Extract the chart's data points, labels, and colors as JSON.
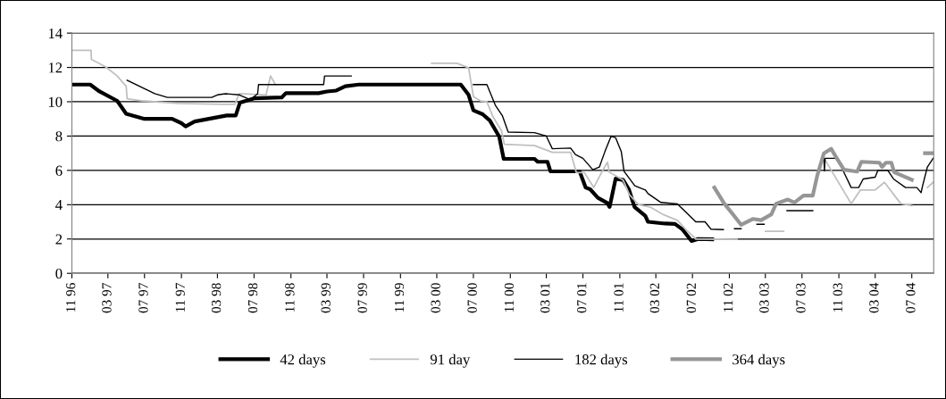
{
  "chart_data": {
    "type": "line",
    "xlim": [
      "1996-11-01",
      "2004-09-12"
    ],
    "ylim": [
      0,
      14
    ],
    "yticks": [
      0,
      2,
      4,
      6,
      8,
      10,
      12,
      14
    ],
    "xticks": [
      {
        "value": "1996-11-01",
        "label": "11 96"
      },
      {
        "value": "1997-03-01",
        "label": "03 97"
      },
      {
        "value": "1997-07-01",
        "label": "07 97"
      },
      {
        "value": "1997-11-01",
        "label": "11 97"
      },
      {
        "value": "1998-03-01",
        "label": "03 98"
      },
      {
        "value": "1998-07-01",
        "label": "07 98"
      },
      {
        "value": "1998-11-01",
        "label": "11 98"
      },
      {
        "value": "1999-03-01",
        "label": "03 99"
      },
      {
        "value": "1999-07-01",
        "label": "07 99"
      },
      {
        "value": "1999-11-01",
        "label": "11 99"
      },
      {
        "value": "2000-03-01",
        "label": "03 00"
      },
      {
        "value": "2000-07-01",
        "label": "07 00"
      },
      {
        "value": "2000-11-01",
        "label": "11 00"
      },
      {
        "value": "2001-03-01",
        "label": "03 01"
      },
      {
        "value": "2001-07-01",
        "label": "07 01"
      },
      {
        "value": "2001-11-01",
        "label": "11 01"
      },
      {
        "value": "2002-03-01",
        "label": "03 02"
      },
      {
        "value": "2002-07-01",
        "label": "07 02"
      },
      {
        "value": "2002-11-01",
        "label": "11 02"
      },
      {
        "value": "2003-03-01",
        "label": "03 03"
      },
      {
        "value": "2003-07-01",
        "label": "07 03"
      },
      {
        "value": "2003-11-01",
        "label": "11 03"
      },
      {
        "value": "2004-03-01",
        "label": "03 04"
      },
      {
        "value": "2004-07-01",
        "label": "07 04"
      }
    ],
    "grid": "y",
    "legend": "bottom",
    "marker": "none",
    "line_style": "solid",
    "series": [
      {
        "name": "42 days",
        "color": "#000000",
        "x": [
          "1996-11-01",
          "1997-01-01",
          "1997-02-01",
          "1997-04-01",
          "1997-05-01",
          "1997-07-01",
          "1997-10-01",
          "1997-11-01",
          "1997-11-15",
          "1997-12-15",
          "1998-04-01",
          "1998-05-01",
          "1998-05-15",
          "1998-07-01",
          "1998-10-01",
          "1998-10-15",
          "1999-02-01",
          "1999-03-01",
          "1999-04-01",
          "1999-05-01",
          "1999-06-15",
          "2000-05-20",
          "2000-06-15",
          "2000-07-01",
          "2000-08-01",
          "2000-08-25",
          "2000-09-25",
          "2000-10-10",
          "2001-01-20",
          "2001-02-01",
          "2001-03-05",
          "2001-03-15",
          "2001-06-20",
          "2001-07-10",
          "2001-07-25",
          "2001-08-20",
          "2001-09-20",
          "2001-09-28",
          "2001-10-18",
          "2001-11-12",
          "2001-12-01",
          "2001-12-20",
          "2002-01-25",
          "2002-02-03",
          "2002-04-01",
          "2002-05-04",
          "2002-05-28",
          "2002-06-28",
          "2002-07-20",
          "2002-09-05"
        ],
        "values": [
          11.0,
          11.0,
          10.6,
          10.05,
          9.3,
          9.0,
          9.0,
          8.75,
          8.56,
          8.85,
          9.2,
          9.2,
          9.95,
          10.2,
          10.25,
          10.5,
          10.5,
          10.6,
          10.65,
          10.9,
          11.0,
          11.0,
          10.4,
          9.5,
          9.27,
          8.9,
          7.97,
          6.67,
          6.67,
          6.5,
          6.5,
          5.94,
          5.94,
          5.0,
          4.9,
          4.4,
          4.1,
          3.87,
          5.52,
          5.44,
          4.9,
          3.87,
          3.35,
          3.0,
          2.9,
          2.88,
          2.57,
          1.88,
          2.0,
          1.98
        ]
      },
      {
        "name": "91 day",
        "color": "#c0c0c0",
        "x": [
          "1996-11-01",
          "1997-01-04",
          "1997-01-05",
          "1997-02-22",
          "1997-04-01",
          "1997-05-01",
          "1997-05-04",
          "1997-06-25",
          "1997-10-22",
          "1998-03-19",
          "1998-04-28",
          "1998-05-13",
          "1998-08-10",
          "1998-08-25",
          "1998-09-10",
          "1999-06-01",
          "2000-02-13",
          "2000-05-07",
          "2000-06-15",
          "2000-07-01",
          "2000-07-25",
          "2000-08-15",
          "2000-09-03",
          "2000-10-03",
          "2000-10-12",
          "2001-01-21",
          "2001-03-21",
          "2001-05-21",
          "2001-06-09",
          "2001-07-06",
          "2001-08-06",
          "2001-09-06",
          "2001-09-21",
          "2001-09-27",
          "2001-11-12",
          "2001-12-03",
          "2002-01-03",
          "2002-02-09",
          "2002-03-24",
          "2002-05-12",
          "2002-06-12",
          "2002-07-12",
          "2002-11-27",
          "2003-01-01",
          "2003-03-01",
          "2003-05-01",
          "2003-07-01",
          "2003-09-12",
          "2003-12-12",
          "2004-01-12",
          "2004-03-01",
          "2004-04-01",
          "2004-05-25",
          "2004-07-01",
          "2004-08-01",
          "2004-08-22",
          "2004-09-10"
        ],
        "values": [
          13.0,
          13.0,
          12.47,
          12.03,
          11.5,
          10.9,
          10.17,
          10.05,
          9.9,
          9.85,
          9.85,
          10.47,
          10.4,
          11.5,
          11.0,
          null,
          12.24,
          12.24,
          11.98,
          10.3,
          10.05,
          10.0,
          9.17,
          8.3,
          7.52,
          7.44,
          7.05,
          7.05,
          5.87,
          5.87,
          5.0,
          6.04,
          6.47,
          5.9,
          5.43,
          4.58,
          4.0,
          3.87,
          3.44,
          3.09,
          2.5,
          2.0,
          1.98,
          null,
          2.45,
          2.45,
          null,
          6.73,
          4.06,
          4.86,
          4.86,
          5.3,
          4.06,
          3.95,
          null,
          5.0,
          5.3
        ]
      },
      {
        "name": "182 days",
        "color": "#000000",
        "x": [
          "1997-05-04",
          "1997-08-04",
          "1997-09-15",
          "1998-02-10",
          "1998-03-01",
          "1998-03-28",
          "1998-05-13",
          "1998-06-18",
          "1998-07-13",
          "1998-07-16",
          "1999-02-18",
          "1999-02-21",
          "1999-05-21",
          "1999-10-01",
          "2000-07-01",
          "2000-08-15",
          "2000-09-12",
          "2000-10-06",
          "2000-10-25",
          "2001-01-21",
          "2001-03-01",
          "2001-03-21",
          "2001-05-21",
          "2001-06-06",
          "2001-07-01",
          "2001-08-03",
          "2001-08-25",
          "2001-09-12",
          "2001-10-03",
          "2001-10-18",
          "2001-11-06",
          "2001-11-15",
          "2001-12-21",
          "2002-01-25",
          "2002-02-03",
          "2002-03-18",
          "2002-05-12",
          "2002-07-12",
          "2002-08-12",
          "2002-09-01",
          "2002-10-12",
          "2002-11-01",
          "2002-11-18",
          "2002-12-10",
          "2002-12-25",
          "2003-02-01",
          "2003-02-25",
          "2003-03-10",
          "2003-05-12",
          "2003-08-06",
          "2003-08-20",
          "2003-09-12",
          "2003-09-14",
          "2003-09-16",
          "2003-10-24",
          "2003-11-12",
          "2003-12-12",
          "2004-01-06",
          "2004-01-21",
          "2004-03-01",
          "2004-03-10",
          "2004-04-12",
          "2004-05-01",
          "2004-06-10",
          "2004-07-18",
          "2004-08-01",
          "2004-08-06",
          "2004-08-22",
          "2004-09-10"
        ],
        "values": [
          11.25,
          10.47,
          10.25,
          10.25,
          10.4,
          10.47,
          10.4,
          10.12,
          10.47,
          11.0,
          11.0,
          11.5,
          11.5,
          null,
          11.0,
          11.0,
          9.8,
          9.17,
          8.23,
          8.2,
          8.0,
          7.26,
          7.3,
          6.92,
          6.7,
          6.04,
          6.2,
          7.08,
          8.0,
          7.9,
          7.08,
          5.95,
          5.1,
          4.86,
          4.65,
          4.13,
          4.04,
          3.0,
          3.0,
          2.57,
          2.55,
          null,
          2.6,
          2.6,
          null,
          2.86,
          2.86,
          null,
          3.65,
          3.65,
          null,
          6.73,
          5.97,
          6.7,
          6.7,
          6.1,
          5.0,
          5.0,
          5.5,
          5.6,
          6.0,
          6.0,
          5.5,
          5.0,
          5.0,
          4.7,
          5.1,
          6.2,
          6.7
        ]
      },
      {
        "name": "364 days",
        "color": "#969696",
        "x": [
          "2002-09-12",
          "2002-10-15",
          "2002-11-10",
          "2002-12-10",
          "2003-01-18",
          "2003-02-15",
          "2003-03-21",
          "2003-04-06",
          "2003-05-15",
          "2003-06-06",
          "2003-07-06",
          "2003-08-06",
          "2003-08-21",
          "2003-09-12",
          "2003-10-06",
          "2003-10-27",
          "2003-11-18",
          "2004-01-01",
          "2004-01-15",
          "2004-03-15",
          "2004-03-24",
          "2004-04-06",
          "2004-04-24",
          "2004-05-03",
          "2004-07-01",
          "2004-07-20",
          "2004-08-14",
          "2004-09-12"
        ],
        "values": [
          5.0,
          4.06,
          3.5,
          2.83,
          3.17,
          3.1,
          3.44,
          4.06,
          4.3,
          4.13,
          4.53,
          4.53,
          5.7,
          7.0,
          7.26,
          6.65,
          6.04,
          5.93,
          6.5,
          6.45,
          6.2,
          6.45,
          6.45,
          5.9,
          5.45,
          null,
          7.0,
          7.0
        ]
      }
    ]
  }
}
